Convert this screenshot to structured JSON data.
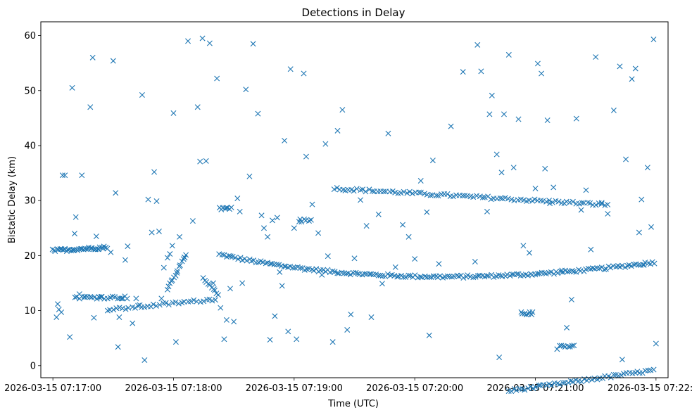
{
  "chart_data": {
    "type": "scatter",
    "title": "Detections in Delay",
    "xlabel": "Time (UTC)",
    "ylabel": "Bistatic Delay (km)",
    "marker": "x",
    "color": "#1f77b4",
    "xlim": [
      -0.1,
      5.1
    ],
    "ylim": [
      -2.2,
      62.5
    ],
    "x_unit": "minutes since 2026-03-15 07:17:00",
    "xticks": [
      0,
      1,
      2,
      3,
      4,
      5
    ],
    "xtick_labels": [
      "2026-03-15 07:17:00",
      "2026-03-15 07:18:00",
      "2026-03-15 07:19:00",
      "2026-03-15 07:20:00",
      "2026-03-15 07:21:00",
      "2026-03-15 07:22:00"
    ],
    "yticks": [
      0,
      10,
      20,
      30,
      40,
      50,
      60
    ],
    "ytick_labels": [
      "0",
      "10",
      "20",
      "30",
      "40",
      "50",
      "60"
    ],
    "tracks": [
      {
        "name": "track-main-curve",
        "x_start": 1.38,
        "x_end": 4.99,
        "points": 190,
        "poly": [
          20.2,
          -17.1,
          21.5,
          -7.9,
          2.1
        ]
      },
      {
        "name": "track-upper",
        "x_start": 2.33,
        "x_end": 4.6,
        "points": 95,
        "poly": [
          32.2,
          -2.98,
          0.0,
          0.0,
          0.0
        ]
      },
      {
        "name": "track-lower-right",
        "x_start": 3.78,
        "x_end": 4.98,
        "points": 55,
        "poly": [
          -4.6,
          3.75,
          0.0,
          0.0,
          0.0
        ]
      },
      {
        "name": "track-left-high",
        "x_start": 0.0,
        "x_end": 0.45,
        "points": 40,
        "poly": [
          20.9,
          0.6,
          0.0,
          0.0,
          0.0
        ]
      },
      {
        "name": "track-left-low",
        "x_start": 0.18,
        "x_end": 0.62,
        "points": 22,
        "poly": [
          12.4,
          0.0,
          0.0,
          0.0,
          0.0
        ]
      },
      {
        "name": "track-lowmid",
        "x_start": 0.45,
        "x_end": 1.35,
        "points": 36,
        "poly": [
          10.1,
          2.0,
          0.0,
          0.0,
          0.0
        ]
      },
      {
        "name": "track-mid-high",
        "x_start": 0.95,
        "x_end": 1.1,
        "points": 15,
        "poly": [
          14.0,
          6.0,
          0.0,
          0.0,
          0.0
        ]
      },
      {
        "name": "track-1812",
        "x_start": 1.25,
        "x_end": 1.37,
        "points": 10,
        "poly": [
          15.8,
          -3.0,
          0.0,
          0.0,
          0.0
        ]
      },
      {
        "name": "track-3.9",
        "x_start": 3.88,
        "x_end": 3.98,
        "points": 8,
        "poly": [
          9.5,
          0.0,
          0.0,
          0.0,
          0.0
        ]
      },
      {
        "name": "track-4.2",
        "x_start": 4.2,
        "x_end": 4.32,
        "points": 8,
        "poly": [
          3.6,
          0.0,
          0.0,
          0.0,
          0.0
        ]
      },
      {
        "name": "track-1.4",
        "x_start": 1.38,
        "x_end": 1.48,
        "points": 8,
        "poly": [
          28.6,
          0.0,
          0.0,
          0.0,
          0.0
        ]
      },
      {
        "name": "track-2.1",
        "x_start": 2.04,
        "x_end": 2.14,
        "points": 6,
        "poly": [
          26.4,
          0.0,
          0.0,
          0.0,
          0.0
        ]
      }
    ],
    "points_x": [
      0.03,
      0.04,
      0.05,
      0.07,
      0.08,
      0.1,
      0.14,
      0.16,
      0.18,
      0.19,
      0.22,
      0.24,
      0.26,
      0.31,
      0.33,
      0.34,
      0.36,
      0.38,
      0.4,
      0.48,
      0.5,
      0.52,
      0.54,
      0.55,
      0.57,
      0.6,
      0.62,
      0.66,
      0.69,
      0.72,
      0.74,
      0.76,
      0.79,
      0.82,
      0.84,
      0.86,
      0.88,
      0.9,
      0.92,
      0.95,
      0.97,
      0.99,
      1.0,
      1.02,
      1.05,
      1.09,
      1.12,
      1.16,
      1.2,
      1.22,
      1.24,
      1.27,
      1.3,
      1.33,
      1.36,
      1.39,
      1.42,
      1.44,
      1.47,
      1.5,
      1.53,
      1.55,
      1.57,
      1.6,
      1.63,
      1.66,
      1.7,
      1.73,
      1.75,
      1.78,
      1.8,
      1.82,
      1.84,
      1.86,
      1.88,
      1.9,
      1.92,
      1.95,
      1.97,
      2.0,
      2.02,
      2.05,
      2.08,
      2.1,
      2.15,
      2.2,
      2.23,
      2.26,
      2.28,
      2.32,
      2.36,
      2.4,
      2.44,
      2.47,
      2.5,
      2.55,
      2.6,
      2.64,
      2.7,
      2.73,
      2.78,
      2.84,
      2.9,
      2.95,
      3.0,
      3.05,
      3.1,
      3.12,
      3.15,
      3.2,
      3.3,
      3.4,
      3.5,
      3.52,
      3.55,
      3.6,
      3.62,
      3.64,
      3.68,
      3.7,
      3.72,
      3.74,
      3.78,
      3.82,
      3.86,
      3.9,
      3.95,
      4.0,
      4.02,
      4.05,
      4.08,
      4.1,
      4.12,
      4.15,
      4.18,
      4.22,
      4.26,
      4.3,
      4.34,
      4.38,
      4.42,
      4.46,
      4.5,
      4.55,
      4.6,
      4.65,
      4.7,
      4.72,
      4.75,
      4.8,
      4.83,
      4.86,
      4.88,
      4.9,
      4.93,
      4.96,
      4.98,
      5.0
    ],
    "points_y": [
      8.8,
      11.2,
      10.2,
      9.7,
      34.6,
      34.6,
      5.2,
      50.5,
      24.0,
      27.0,
      13.0,
      34.6,
      12.5,
      47.0,
      56.0,
      8.7,
      23.5,
      12.5,
      12.5,
      20.6,
      55.4,
      31.4,
      3.4,
      8.8,
      12.2,
      19.2,
      21.7,
      7.7,
      12.2,
      11.0,
      49.2,
      1.0,
      30.2,
      24.2,
      35.2,
      29.9,
      24.4,
      12.2,
      17.8,
      19.6,
      20.3,
      21.8,
      45.9,
      4.3,
      23.4,
      19.7,
      59.0,
      26.3,
      47.0,
      37.1,
      59.5,
      37.2,
      58.6,
      15.0,
      52.2,
      10.5,
      4.8,
      8.3,
      14.0,
      8.0,
      30.4,
      28.0,
      15.0,
      50.2,
      34.4,
      58.5,
      45.8,
      27.3,
      25.0,
      23.4,
      4.7,
      26.4,
      9.0,
      26.9,
      17.0,
      14.5,
      40.9,
      6.2,
      53.9,
      25.0,
      4.8,
      26.6,
      53.1,
      38.0,
      29.3,
      24.1,
      16.5,
      40.3,
      19.9,
      4.3,
      42.7,
      46.5,
      6.5,
      9.3,
      19.5,
      30.1,
      25.4,
      8.8,
      27.5,
      14.9,
      42.2,
      17.9,
      25.6,
      23.4,
      19.4,
      33.6,
      27.9,
      5.5,
      37.3,
      18.5,
      43.5,
      53.4,
      18.9,
      58.3,
      53.5,
      28.0,
      45.7,
      49.1,
      38.4,
      1.5,
      35.1,
      45.7,
      56.5,
      36.0,
      44.8,
      21.8,
      20.5,
      32.2,
      54.9,
      53.1,
      35.8,
      44.6,
      29.5,
      32.4,
      3.0,
      17.3,
      6.9,
      12.0,
      44.9,
      28.3,
      31.9,
      21.1,
      56.1,
      29.6,
      27.6,
      46.4,
      54.4,
      1.1,
      37.5,
      52.1,
      54.0,
      24.2,
      30.2,
      18.3,
      36.0,
      25.2,
      59.3,
      4.0,
      0.8,
      50.2,
      48.2,
      21.2
    ]
  }
}
